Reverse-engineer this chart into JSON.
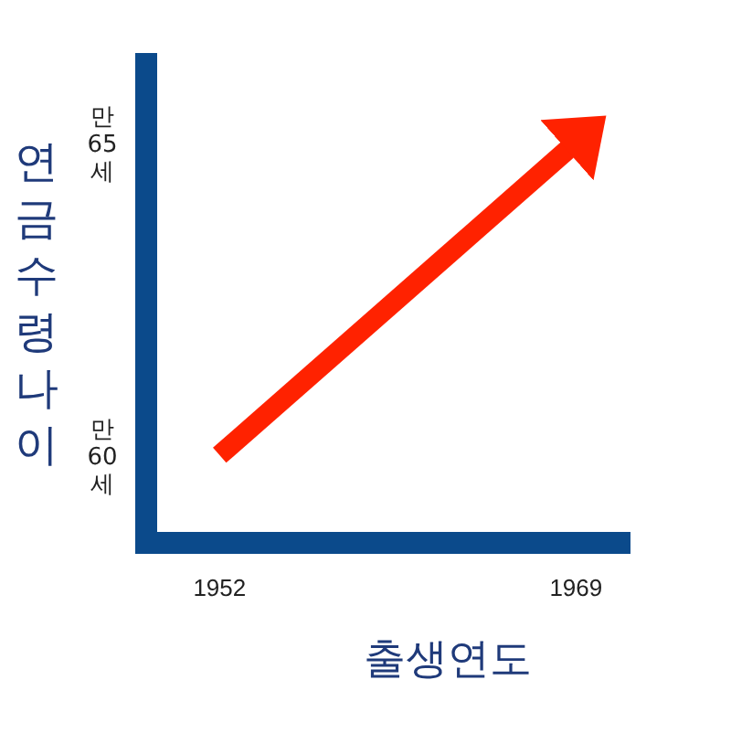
{
  "chart_data": {
    "type": "line",
    "xlabel": "출생연도",
    "ylabel": "연금수령나이",
    "x": [
      1952,
      1969
    ],
    "series": [
      {
        "color": "#ff2200",
        "values": [
          60,
          65
        ]
      }
    ],
    "xlim": [
      1948.5,
      1971.6
    ],
    "ylim": [
      58.6,
      66.25
    ],
    "xticks": [
      1952,
      1969
    ],
    "yticks": [
      60,
      65
    ],
    "annotations": [
      "만",
      "세",
      "만",
      "세"
    ],
    "marker": "none",
    "line_style": "solid"
  }
}
